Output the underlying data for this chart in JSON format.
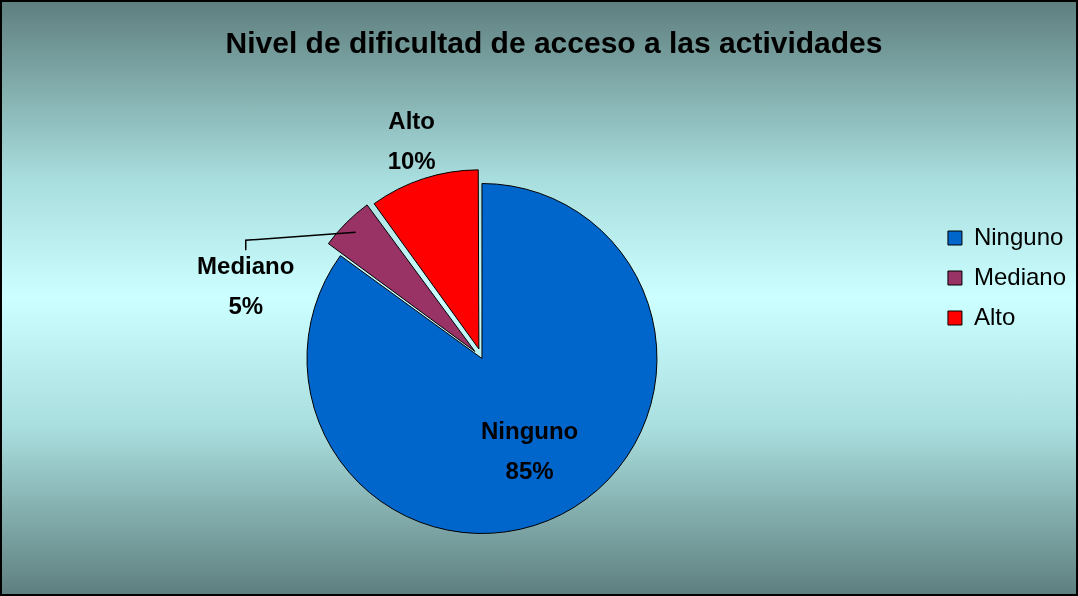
{
  "chart_data": {
    "type": "pie",
    "title": "Nivel de dificultad de acceso a las actividades",
    "categories": [
      "Ninguno",
      "Mediano",
      "Alto"
    ],
    "values": [
      85,
      5,
      10
    ],
    "colors": [
      "#0066cc",
      "#993366",
      "#ff0000"
    ],
    "value_labels": [
      "85%",
      "5%",
      "10%"
    ],
    "legend": "right"
  }
}
